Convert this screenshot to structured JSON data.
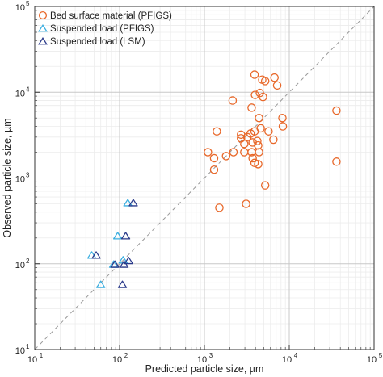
{
  "chart_data": {
    "type": "scatter",
    "xlabel": "Predicted particle size, µm",
    "ylabel": "Observed particle size, µm",
    "x_scale": "log",
    "y_scale": "log",
    "xlim": [
      10,
      100000
    ],
    "ylim": [
      10,
      100000
    ],
    "x_ticks": [
      {
        "base": "10",
        "exp": "1"
      },
      {
        "base": "10",
        "exp": "2"
      },
      {
        "base": "10",
        "exp": "3"
      },
      {
        "base": "10",
        "exp": "4"
      },
      {
        "base": "10",
        "exp": "5"
      }
    ],
    "y_ticks": [
      {
        "base": "10",
        "exp": "1"
      },
      {
        "base": "10",
        "exp": "2"
      },
      {
        "base": "10",
        "exp": "3"
      },
      {
        "base": "10",
        "exp": "4"
      },
      {
        "base": "10",
        "exp": "5"
      }
    ],
    "grid": true,
    "reference_line": "1:1",
    "legend_position": "top-left",
    "series": [
      {
        "name": "Bed surface material (PFIGS)",
        "marker": "circle",
        "color": "#e8682a",
        "points": [
          [
            3900,
            16000
          ],
          [
            4800,
            14000
          ],
          [
            5200,
            13500
          ],
          [
            6700,
            14800
          ],
          [
            7200,
            12000
          ],
          [
            2150,
            8000
          ],
          [
            3950,
            9300
          ],
          [
            4500,
            9800
          ],
          [
            3600,
            6600
          ],
          [
            4900,
            8800
          ],
          [
            4400,
            5000
          ],
          [
            8300,
            5000
          ],
          [
            1400,
            3500
          ],
          [
            2700,
            3200
          ],
          [
            2700,
            2900
          ],
          [
            3200,
            3000
          ],
          [
            3500,
            3300
          ],
          [
            3900,
            3500
          ],
          [
            4600,
            3800
          ],
          [
            5700,
            3500
          ],
          [
            8400,
            4000
          ],
          [
            6500,
            2800
          ],
          [
            2950,
            2500
          ],
          [
            3700,
            2600
          ],
          [
            4200,
            2700
          ],
          [
            4300,
            2400
          ],
          [
            2200,
            2000
          ],
          [
            2950,
            2000
          ],
          [
            3600,
            2000
          ],
          [
            4400,
            2000
          ],
          [
            1100,
            2000
          ],
          [
            1800,
            1800
          ],
          [
            3700,
            1700
          ],
          [
            1300,
            1700
          ],
          [
            3900,
            1500
          ],
          [
            4300,
            1450
          ],
          [
            1300,
            1250
          ],
          [
            36000,
            6100
          ],
          [
            36000,
            1550
          ],
          [
            5200,
            820
          ],
          [
            3100,
            500
          ],
          [
            1500,
            450
          ]
        ]
      },
      {
        "name": "Suspended load (PFIGS)",
        "marker": "triangle",
        "color": "#3aaee0",
        "points": [
          [
            125,
            510
          ],
          [
            95,
            210
          ],
          [
            47,
            125
          ],
          [
            85,
            98
          ],
          [
            110,
            110
          ],
          [
            60,
            57
          ]
        ]
      },
      {
        "name": "Suspended load (LSM)",
        "marker": "triangle",
        "color": "#2a3a8a",
        "points": [
          [
            145,
            510
          ],
          [
            118,
            210
          ],
          [
            53,
            125
          ],
          [
            88,
            98
          ],
          [
            113,
            98
          ],
          [
            128,
            108
          ],
          [
            108,
            57
          ]
        ]
      }
    ]
  }
}
